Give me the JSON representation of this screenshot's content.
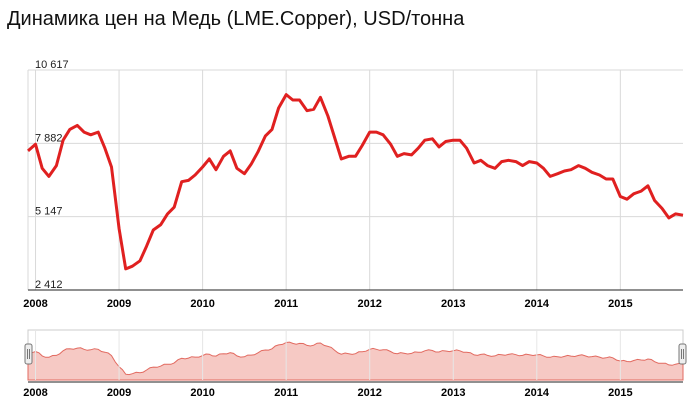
{
  "title": "Динамика цен на Медь (LME.Copper), USD/тонна",
  "colors": {
    "line": "#e02020",
    "navigator_fill": "#f6c9c4",
    "navigator_line": "#e26a60",
    "grid": "#d9d9d9"
  },
  "chart_data": {
    "type": "line",
    "title": "Динамика цен на Медь (LME.Copper), USD/тонна",
    "xlabel": "",
    "ylabel": "",
    "ylim": [
      2412,
      10617
    ],
    "xlim": [
      2007.91,
      2015.75
    ],
    "y_ticks": [
      "10 617",
      "7 882",
      "5 147",
      "2 412"
    ],
    "y_tick_values": [
      10617,
      7882,
      5147,
      2412
    ],
    "x_ticks": [
      "2008",
      "2009",
      "2010",
      "2011",
      "2012",
      "2013",
      "2014",
      "2015"
    ],
    "x_tick_values": [
      2008,
      2009,
      2010,
      2011,
      2012,
      2013,
      2014,
      2015
    ],
    "grid": true,
    "legend": "none",
    "series": [
      {
        "x": [
          2007.91,
          2008.0,
          2008.08,
          2008.16,
          2008.25,
          2008.33,
          2008.41,
          2008.5,
          2008.58,
          2008.66,
          2008.75,
          2008.83,
          2008.91,
          2009.0,
          2009.08,
          2009.16,
          2009.25,
          2009.33,
          2009.41,
          2009.5,
          2009.58,
          2009.66,
          2009.75,
          2009.83,
          2009.91,
          2010.0,
          2010.08,
          2010.16,
          2010.25,
          2010.33,
          2010.41,
          2010.5,
          2010.58,
          2010.66,
          2010.75,
          2010.83,
          2010.91,
          2011.0,
          2011.08,
          2011.16,
          2011.25,
          2011.33,
          2011.41,
          2011.5,
          2011.58,
          2011.66,
          2011.75,
          2011.83,
          2011.91,
          2012.0,
          2012.08,
          2012.16,
          2012.25,
          2012.33,
          2012.41,
          2012.5,
          2012.58,
          2012.66,
          2012.75,
          2012.83,
          2012.91,
          2013.0,
          2013.08,
          2013.16,
          2013.25,
          2013.33,
          2013.41,
          2013.5,
          2013.58,
          2013.66,
          2013.75,
          2013.83,
          2013.91,
          2014.0,
          2014.08,
          2014.16,
          2014.25,
          2014.33,
          2014.41,
          2014.5,
          2014.58,
          2014.66,
          2014.75,
          2014.83,
          2014.91,
          2015.0,
          2015.08,
          2015.16,
          2015.25,
          2015.33,
          2015.41,
          2015.5,
          2015.58,
          2015.66,
          2015.75
        ],
        "values": [
          7600,
          7850,
          6950,
          6650,
          7050,
          8000,
          8400,
          8550,
          8300,
          8200,
          8300,
          7700,
          7000,
          4700,
          3200,
          3300,
          3500,
          4050,
          4650,
          4850,
          5250,
          5500,
          6450,
          6500,
          6700,
          7000,
          7300,
          6900,
          7400,
          7600,
          6950,
          6750,
          7100,
          7550,
          8150,
          8400,
          9200,
          9700,
          9500,
          9500,
          9100,
          9150,
          9600,
          8900,
          8100,
          7300,
          7400,
          7400,
          7800,
          8300,
          8300,
          8200,
          7850,
          7400,
          7500,
          7450,
          7700,
          8000,
          8050,
          7750,
          7950,
          8000,
          8000,
          7700,
          7150,
          7250,
          7050,
          6950,
          7200,
          7250,
          7200,
          7050,
          7200,
          7150,
          6950,
          6650,
          6750,
          6850,
          6900,
          7050,
          6950,
          6800,
          6700,
          6550,
          6550,
          5900,
          5800,
          6000,
          6100,
          6300,
          5750,
          5450,
          5100,
          5250,
          5200
        ]
      }
    ]
  }
}
